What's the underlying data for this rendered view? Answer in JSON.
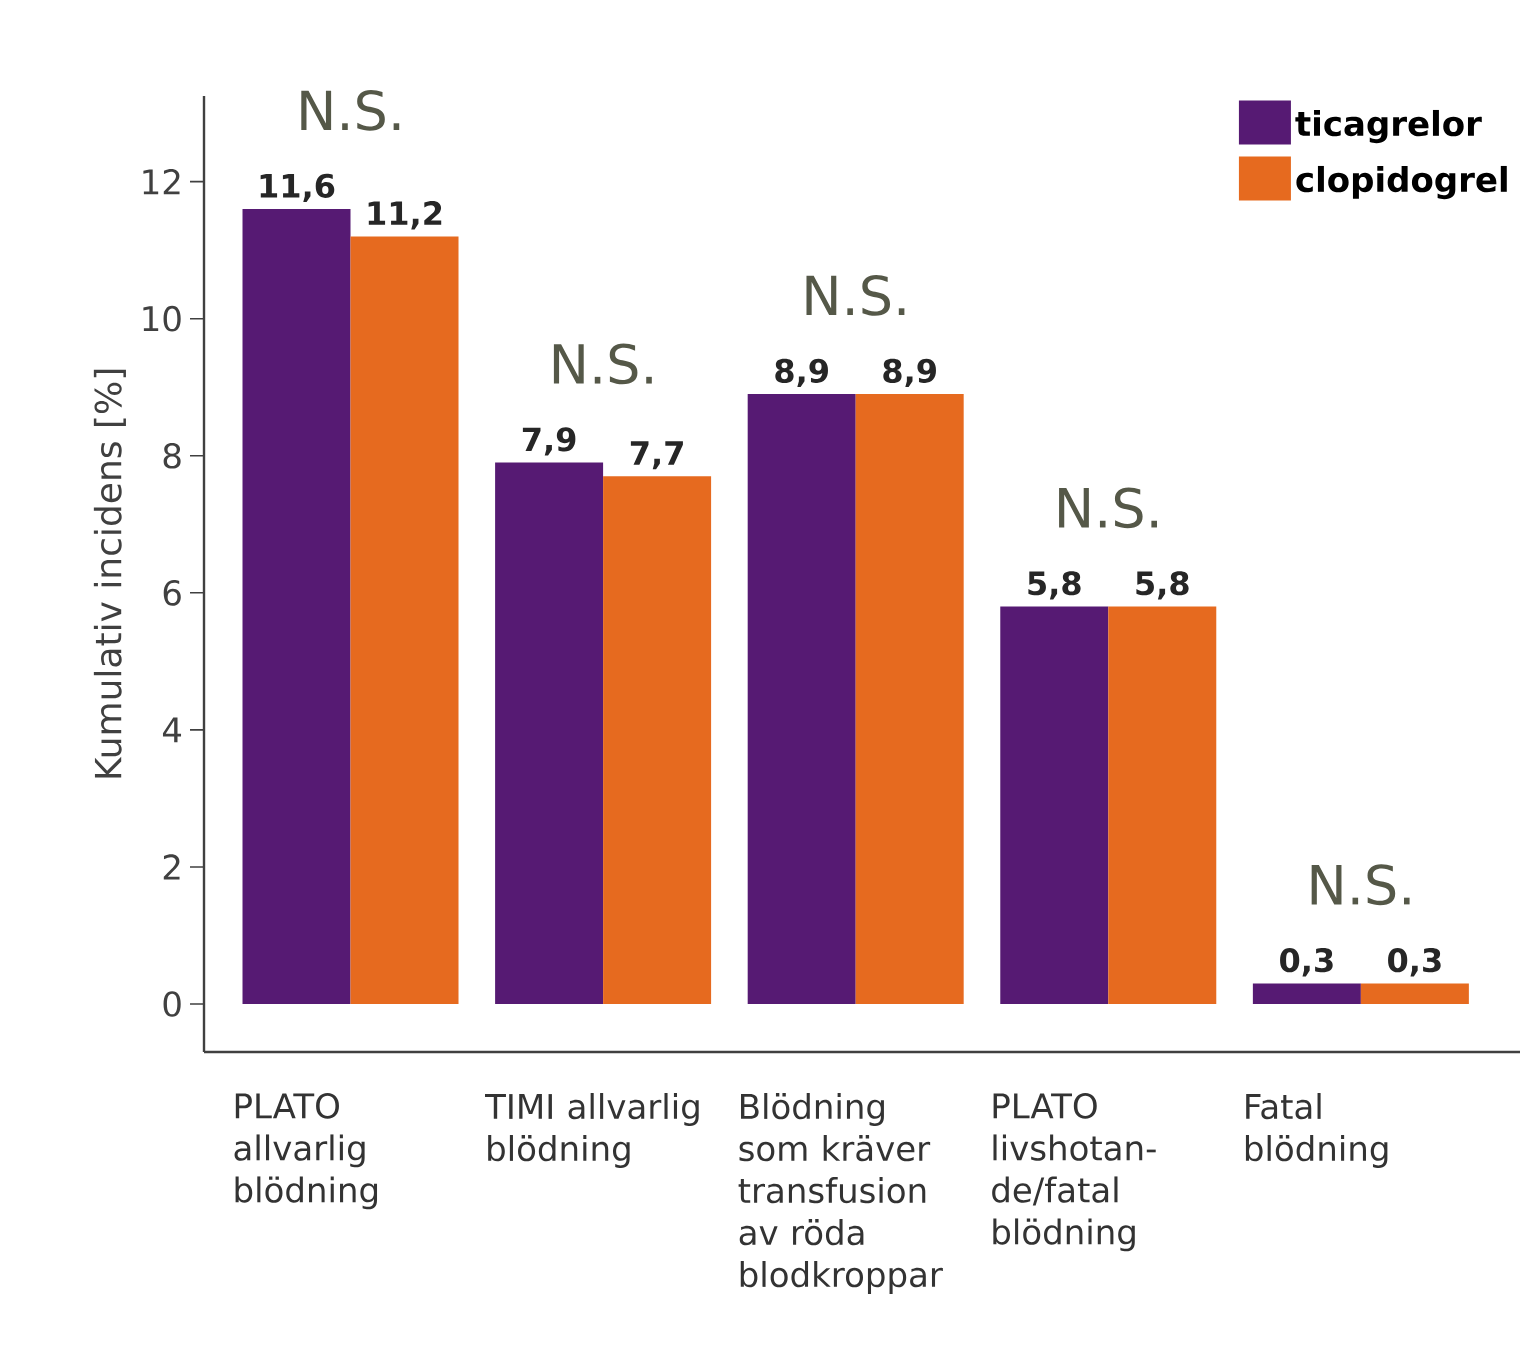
{
  "chart_data": {
    "type": "bar",
    "ylabel": "Kumulativ incidens [%]",
    "categories": [
      "PLATO allvarlig blödning",
      "TIMI allvarlig blödning",
      "Blödning som kräver transfusion av röda blodkroppar",
      "PLATO livshotan-de/fatal blödning",
      "Fatal blödning"
    ],
    "series": [
      {
        "name": "ticagrelor",
        "color": "#561a73",
        "values": [
          11.6,
          7.9,
          8.9,
          5.8,
          0.3
        ],
        "value_labels": [
          "11,6",
          "7,9",
          "8,9",
          "5,8",
          "0,3"
        ]
      },
      {
        "name": "clopidogrel",
        "color": "#e66a1f",
        "values": [
          11.2,
          7.7,
          8.9,
          5.8,
          0.3
        ],
        "value_labels": [
          "11,2",
          "7,7",
          "8,9",
          "5,8",
          "0,3"
        ]
      }
    ],
    "annotations": [
      "N.S.",
      "N.S.",
      "N.S.",
      "N.S.",
      "N.S."
    ],
    "ylim": [
      -0.7,
      13.25
    ],
    "yticks": [
      0,
      2,
      4,
      6,
      8,
      10,
      12
    ],
    "grid": false,
    "legend": "top right"
  }
}
